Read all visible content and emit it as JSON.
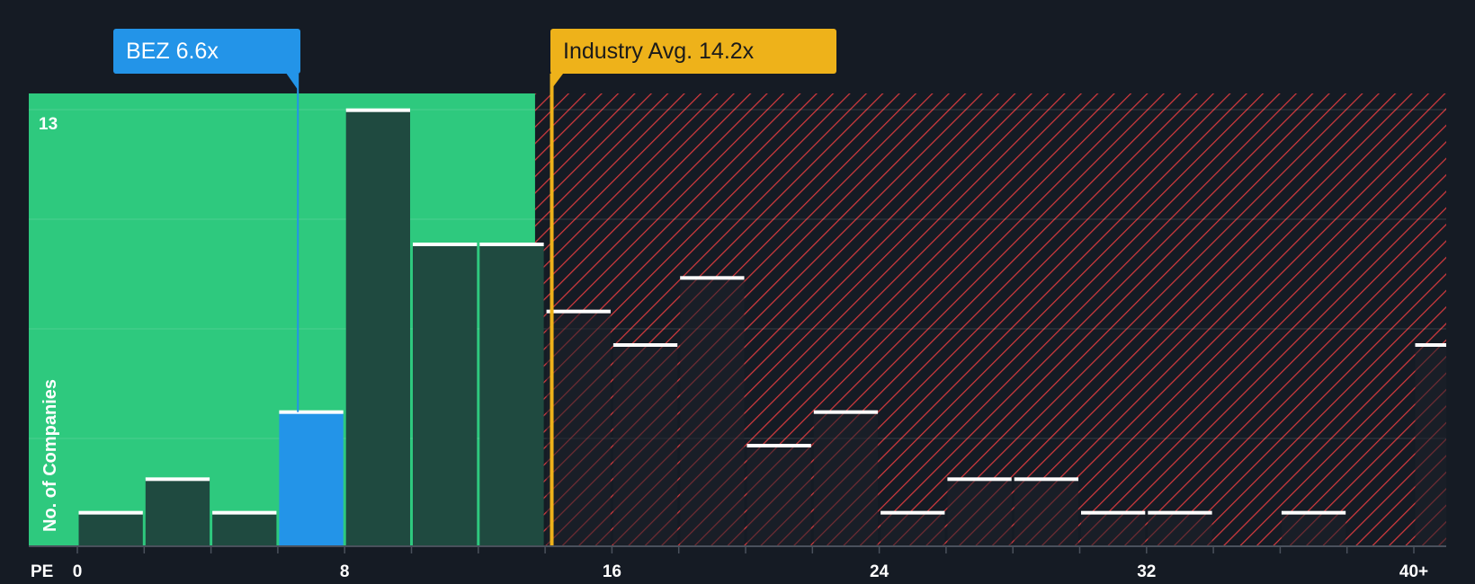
{
  "company_label": "BEZ 6.6x",
  "industry_label": "Industry Avg. 14.2x",
  "chart_data": {
    "type": "bar",
    "title": "",
    "xlabel": "PE",
    "ylabel": "No. of Companies",
    "x_tick_labels": [
      "0",
      "8",
      "16",
      "24",
      "32",
      "40+"
    ],
    "x_tick_values": [
      0,
      8,
      16,
      24,
      32,
      40
    ],
    "y_tick_label": "13",
    "ylim": [
      0,
      13.5
    ],
    "bin_width": 2,
    "bins": [
      {
        "x0": 0,
        "x1": 2,
        "count": 1
      },
      {
        "x0": 2,
        "x1": 4,
        "count": 2
      },
      {
        "x0": 4,
        "x1": 6,
        "count": 1
      },
      {
        "x0": 6,
        "x1": 8,
        "count": 4
      },
      {
        "x0": 8,
        "x1": 10,
        "count": 13
      },
      {
        "x0": 10,
        "x1": 12,
        "count": 9
      },
      {
        "x0": 12,
        "x1": 14,
        "count": 9
      },
      {
        "x0": 14,
        "x1": 16,
        "count": 7
      },
      {
        "x0": 16,
        "x1": 18,
        "count": 6
      },
      {
        "x0": 18,
        "x1": 20,
        "count": 8
      },
      {
        "x0": 20,
        "x1": 22,
        "count": 3
      },
      {
        "x0": 22,
        "x1": 24,
        "count": 4
      },
      {
        "x0": 24,
        "x1": 26,
        "count": 1
      },
      {
        "x0": 26,
        "x1": 28,
        "count": 2
      },
      {
        "x0": 28,
        "x1": 30,
        "count": 2
      },
      {
        "x0": 30,
        "x1": 32,
        "count": 1
      },
      {
        "x0": 32,
        "x1": 34,
        "count": 1
      },
      {
        "x0": 34,
        "x1": 36,
        "count": 0
      },
      {
        "x0": 36,
        "x1": 38,
        "count": 1
      },
      {
        "x0": 38,
        "x1": 40,
        "count": 0
      },
      {
        "x0": 40,
        "x1": 42,
        "count": 6
      }
    ],
    "company_value": 6.6,
    "industry_avg": 14.2,
    "good_zone_until": 14.2
  },
  "colors": {
    "background": "#151b24",
    "good_zone": "#2ec97e",
    "bar_in_good": "#1f4a40",
    "bar_out": "#1e2029",
    "company_bar": "#2394e8",
    "bad_hatch": "#d23a3e",
    "industry_line": "#eeb21a",
    "cap": "#ffffff"
  }
}
